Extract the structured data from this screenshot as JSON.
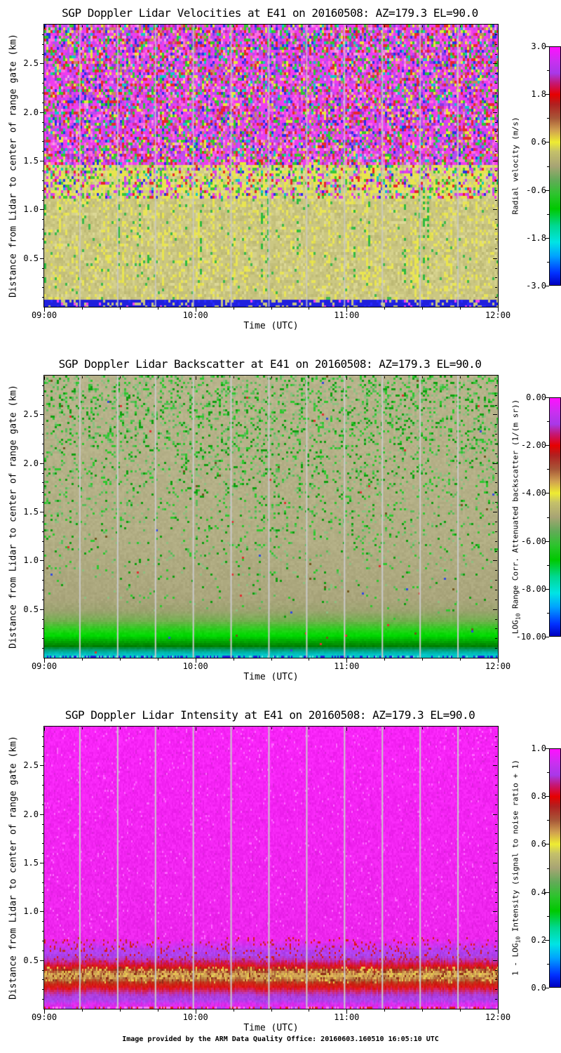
{
  "footer": "Image provided by the ARM Data Quality Office: 20160603.160510 16:05:10 UTC",
  "shared": {
    "xlabel": "Time (UTC)",
    "ylabel": "Distance from Lidar to center of range gate (km)",
    "x_ticks": [
      "09:00",
      "10:00",
      "11:00",
      "12:00"
    ],
    "y_ticks": [
      "0.5",
      "1.0",
      "1.5",
      "2.0",
      "2.5"
    ],
    "y_range_km": [
      0,
      2.9
    ],
    "x_range_utc": [
      "09:00",
      "12:00"
    ]
  },
  "colors": {
    "background": "#ffffff",
    "axis": "#000000",
    "gap_line": "#c9c9c9",
    "colormap_stops": [
      [
        0.0,
        "#0000c0"
      ],
      [
        0.05,
        "#0030ff"
      ],
      [
        0.12,
        "#00a0ff"
      ],
      [
        0.18,
        "#00e4e4"
      ],
      [
        0.25,
        "#00d890"
      ],
      [
        0.32,
        "#00c800"
      ],
      [
        0.38,
        "#2cc42c"
      ],
      [
        0.44,
        "#62aa58"
      ],
      [
        0.5,
        "#a8a474"
      ],
      [
        0.56,
        "#c4c06a"
      ],
      [
        0.6,
        "#eeec32"
      ],
      [
        0.65,
        "#d0a050"
      ],
      [
        0.7,
        "#a85838"
      ],
      [
        0.76,
        "#b02020"
      ],
      [
        0.8,
        "#e60000"
      ],
      [
        0.85,
        "#c41878"
      ],
      [
        0.89,
        "#a838e8"
      ],
      [
        0.94,
        "#c930f0"
      ],
      [
        1.0,
        "#ff10ff"
      ]
    ]
  },
  "panels": [
    {
      "title": "SGP Doppler Lidar Velocities at E41 on 20160508: AZ=179.3 EL=90.0",
      "colorbar": {
        "label_prefix": "Radial velocity (m/s)",
        "label_sub": "",
        "label_suffix": "",
        "ticks": [
          "3.0",
          "1.8",
          "0.6",
          "-0.6",
          "-1.8",
          "-3.0"
        ]
      }
    },
    {
      "title": "SGP Doppler Lidar Backscatter at E41 on 20160508: AZ=179.3 EL=90.0",
      "colorbar": {
        "label_prefix": "LOG",
        "label_sub": "10",
        "label_suffix": " Range Corr. Attenuated backscatter (1/(m sr))",
        "ticks": [
          "0.00",
          "-2.00",
          "-4.00",
          "-6.00",
          "-8.00",
          "-10.00"
        ]
      }
    },
    {
      "title": "SGP Doppler Lidar Intensity at E41 on 20160508: AZ=179.3 EL=90.0",
      "colorbar": {
        "label_prefix": "1 - LOG",
        "label_sub": "10",
        "label_suffix": " Intensity (signal to noise ratio + 1)",
        "ticks": [
          "1.0",
          "0.8",
          "0.6",
          "0.4",
          "0.2",
          "0.0"
        ]
      }
    }
  ],
  "chart_data": [
    {
      "type": "heatmap",
      "title": "SGP Doppler Lidar Velocities at E41 on 20160508: AZ=179.3 EL=90.0",
      "xlabel": "Time (UTC)",
      "ylabel": "Distance from Lidar to center of range gate (km)",
      "x_ticks": [
        "09:00",
        "10:00",
        "11:00",
        "12:00"
      ],
      "x_range_utc": [
        "09:00",
        "12:00"
      ],
      "y_ticks": [
        0.5,
        1.0,
        1.5,
        2.0,
        2.5
      ],
      "y_range_km": [
        0,
        2.9
      ],
      "colorbar": {
        "label": "Radial velocity (m/s)",
        "range": [
          -3.0,
          3.0
        ],
        "ticks": [
          3.0,
          1.8,
          0.6,
          -0.6,
          -1.8,
          -3.0
        ]
      },
      "data_gap_lines": {
        "interval_min": 15,
        "note": "vertical light-gray scan-gap stripes every 15 minutes"
      },
      "bands": [
        {
          "km": [
            0.0,
            0.06
          ],
          "feature": "surface strip of blue pixels near -3 m/s mixed with tan"
        },
        {
          "km": [
            0.06,
            1.1
          ],
          "feature": "aerosol layer, tan/khaki ~0 to +0.4 m/s with yellow ~+0.6 m/s and sparse green ~-0.8 m/s vertical streaks"
        },
        {
          "km": [
            1.1,
            1.45
          ],
          "feature": "layer top, yellow ~+0.6 to +0.9 m/s speckle"
        },
        {
          "km": [
            1.45,
            2.9
          ],
          "feature": "uncorrelated noise, random magenta/purple/red/green/blue/yellow speckle over full -3..+3 m/s"
        }
      ],
      "render": {
        "cell": [
          3,
          4
        ],
        "col_streaks": [
          {
            "p": 0.1,
            "km": [
              0.15,
              1.4
            ],
            "color": "#e9e54c",
            "boost": 0.35
          },
          {
            "p": 0.06,
            "km": [
              0.25,
              1.2
            ],
            "color": "#2ebb3e",
            "boost": 0.3
          }
        ],
        "regions": [
          {
            "km": [
              0.0,
              0.06
            ],
            "palette": [
              [
                "#2020dd",
                0.7
              ],
              [
                "#c8c47e",
                0.18
              ],
              [
                "#2828ff",
                0.08
              ],
              [
                "#ee44ee",
                0.04
              ]
            ]
          },
          {
            "km": [
              0.06,
              1.1
            ],
            "palette": [
              [
                "#cbc782",
                0.38
              ],
              [
                "#c3bf7a",
                0.2
              ],
              [
                "#d5d18c",
                0.14
              ],
              [
                "#e9e556",
                0.1
              ],
              [
                "#bdb974",
                0.08
              ],
              [
                "#dcd896",
                0.05
              ],
              [
                "#3dbb4a",
                0.02
              ],
              [
                "#e0dc50",
                0.03
              ]
            ]
          },
          {
            "km": [
              1.1,
              1.45
            ],
            "palette": [
              [
                "#e8e44e",
                0.28
              ],
              [
                "#cfcb86",
                0.2
              ],
              [
                "#deda94",
                0.1
              ],
              [
                "#e83ce8",
                0.09
              ],
              [
                "#38c838",
                0.09
              ],
              [
                "#b84cf0",
                0.06
              ],
              [
                "#e82828",
                0.05
              ],
              [
                "#2830e8",
                0.03
              ],
              [
                "#10c8c8",
                0.03
              ],
              [
                "#c0bc74",
                0.07
              ]
            ]
          },
          {
            "km": [
              1.45,
              3.1
            ],
            "palette": [
              [
                "#ee3cee",
                0.26
              ],
              [
                "#ff6ce0",
                0.1
              ],
              [
                "#b84cf0",
                0.13
              ],
              [
                "#8838e8",
                0.05
              ],
              [
                "#e82828",
                0.08
              ],
              [
                "#30c830",
                0.08
              ],
              [
                "#e8e838",
                0.06
              ],
              [
                "#2830e8",
                0.05
              ],
              [
                "#10c8c8",
                0.04
              ],
              [
                "#c88860",
                0.05
              ],
              [
                "#d02898",
                0.06
              ],
              [
                "#f0a0e8",
                0.04
              ]
            ]
          }
        ],
        "gaps": {
          "color": "#c9c9c9",
          "w": 2,
          "offset": -4,
          "alpha": 0.8
        }
      }
    },
    {
      "type": "heatmap",
      "title": "SGP Doppler Lidar Backscatter at E41 on 20160508: AZ=179.3 EL=90.0",
      "xlabel": "Time (UTC)",
      "ylabel": "Distance from Lidar to center of range gate (km)",
      "x_ticks": [
        "09:00",
        "10:00",
        "11:00",
        "12:00"
      ],
      "x_range_utc": [
        "09:00",
        "12:00"
      ],
      "y_ticks": [
        0.5,
        1.0,
        1.5,
        2.0,
        2.5
      ],
      "y_range_km": [
        0,
        2.9
      ],
      "colorbar": {
        "label": "LOG10 Range Corr. Attenuated backscatter (1/(m sr))",
        "range": [
          -10.0,
          0.0
        ],
        "ticks": [
          0.0,
          -2.0,
          -4.0,
          -6.0,
          -8.0,
          -10.0
        ]
      },
      "data_gap_lines": {
        "interval_min": 15,
        "note": "vertical light-gray scan-gap stripes every 15 minutes"
      },
      "bands": [
        {
          "km": [
            0.0,
            0.05
          ],
          "feature": "cyan strip, log10 backscatter ~ -8.5, blue flecks at surface"
        },
        {
          "km": [
            0.05,
            0.32
          ],
          "feature": "strong near-surface aerosol, bright green ~ -5.5 to -6.5"
        },
        {
          "km": [
            0.32,
            0.55
          ],
          "feature": "transition from green to tan ~ -5"
        },
        {
          "km": [
            0.55,
            2.9
          ],
          "feature": "tan background ~ -4.5 with green noise speckle ~ -5.5 increasing with height"
        }
      ],
      "render": {
        "cell": [
          3,
          3
        ],
        "grad_stops": [
          [
            0.0,
            "#00d8d8"
          ],
          [
            0.045,
            "#00bcbc"
          ],
          [
            0.08,
            "#00a078"
          ],
          [
            0.12,
            "#008000"
          ],
          [
            0.17,
            "#00a800"
          ],
          [
            0.23,
            "#00dc00"
          ],
          [
            0.3,
            "#30cc20"
          ],
          [
            0.38,
            "#74b050"
          ],
          [
            0.48,
            "#9ca470"
          ],
          [
            0.6,
            "#aaa67c"
          ],
          [
            1.2,
            "#b2ae84"
          ],
          [
            2.9,
            "#b9b48d"
          ]
        ],
        "jitter": 6,
        "speckles": [
          {
            "p0": -0.045,
            "p1": 0.115,
            "colors": [
              "#2ec82e",
              "#5abc5a",
              "#0f9f0f",
              "#8cc080"
            ]
          },
          {
            "p0": 0.002,
            "p1": 0.0,
            "colors": [
              "#e03030",
              "#3048e0",
              "#70561c"
            ]
          }
        ],
        "bottom_row": {
          "h": 3,
          "palette": [
            [
              "#00c8c8",
              0.55
            ],
            [
              "#2020e0",
              0.3
            ],
            [
              "#60e0e0",
              0.15
            ]
          ]
        },
        "gaps": {
          "color": "#c9c9c9",
          "w": 2,
          "offset": -4,
          "alpha": 1
        }
      }
    },
    {
      "type": "heatmap",
      "title": "SGP Doppler Lidar Intensity at E41 on 20160508: AZ=179.3 EL=90.0",
      "xlabel": "Time (UTC)",
      "ylabel": "Distance from Lidar to center of range gate (km)",
      "x_ticks": [
        "09:00",
        "10:00",
        "11:00",
        "12:00"
      ],
      "x_range_utc": [
        "09:00",
        "12:00"
      ],
      "y_ticks": [
        0.5,
        1.0,
        1.5,
        2.0,
        2.5
      ],
      "y_range_km": [
        0,
        2.9
      ],
      "colorbar": {
        "label": "1 - LOG10 Intensity (signal to noise ratio + 1)",
        "range": [
          0.0,
          1.0
        ],
        "ticks": [
          1.0,
          0.8,
          0.6,
          0.4,
          0.2,
          0.0
        ]
      },
      "data_gap_lines": {
        "interval_min": 15,
        "note": "vertical light-gray scan-gap stripes every 15 minutes"
      },
      "bands": [
        {
          "km": [
            0.72,
            2.9
          ],
          "feature": "magenta, value ~1.0 (pure noise, SNR ~ 0)"
        },
        {
          "km": [
            0.5,
            0.72
          ],
          "feature": "purple/violet band ~0.9 with red flecks"
        },
        {
          "km": [
            0.4,
            0.5
          ],
          "feature": "red band ~0.8"
        },
        {
          "km": [
            0.28,
            0.4
          ],
          "feature": "tan/yellow speckled band ~0.5-0.65, strongest signal"
        },
        {
          "km": [
            0.18,
            0.28
          ],
          "feature": "red band ~0.8"
        },
        {
          "km": [
            0.05,
            0.18
          ],
          "feature": "violet band ~0.9"
        },
        {
          "km": [
            0.0,
            0.05
          ],
          "feature": "magenta ~1.0 with red/purple speckle at surface"
        }
      ],
      "render": {
        "cell": [
          2,
          3
        ],
        "col_jitter_km": 0.02,
        "grad_stops": [
          [
            0.0,
            "#ee22ee"
          ],
          [
            0.05,
            "#d830ee"
          ],
          [
            0.09,
            "#aa44ee"
          ],
          [
            0.14,
            "#b03cd8"
          ],
          [
            0.18,
            "#cc2878"
          ],
          [
            0.22,
            "#e01414"
          ],
          [
            0.27,
            "#c03018"
          ],
          [
            0.3,
            "#b87840"
          ],
          [
            0.34,
            "#d8b258"
          ],
          [
            0.37,
            "#cc9850"
          ],
          [
            0.4,
            "#a83020"
          ],
          [
            0.43,
            "#e01414"
          ],
          [
            0.465,
            "#d01858"
          ],
          [
            0.5,
            "#c030b8"
          ],
          [
            0.545,
            "#aa44ee"
          ],
          [
            0.6,
            "#b83cf0"
          ],
          [
            0.66,
            "#d830f0"
          ],
          [
            0.72,
            "#ee26ee"
          ],
          [
            2.9,
            "#f824f8"
          ]
        ],
        "jitter": 9,
        "speckles": [
          {
            "km": [
              0.43,
              0.72
            ],
            "p": 0.1,
            "colors": [
              "#e01414",
              "#c02828"
            ]
          },
          {
            "km": [
              0.28,
              0.42
            ],
            "p": 0.38,
            "colors": [
              "#e8d050",
              "#a86038",
              "#8c2c18",
              "#e8b858"
            ]
          },
          {
            "km": [
              0.72,
              2.9
            ],
            "p": 0.05,
            "colors": [
              "#ff66ff",
              "#dd22dd"
            ]
          }
        ],
        "bottom_row": {
          "h": 3,
          "palette": [
            [
              "#ee22ee",
              0.4
            ],
            [
              "#e02020",
              0.22
            ],
            [
              "#aa44ee",
              0.18
            ],
            [
              "#ff7bee",
              0.2
            ]
          ]
        },
        "gaps": {
          "color": "#c9c9c9",
          "w": 2,
          "offset": -4,
          "alpha": 1
        }
      }
    }
  ]
}
